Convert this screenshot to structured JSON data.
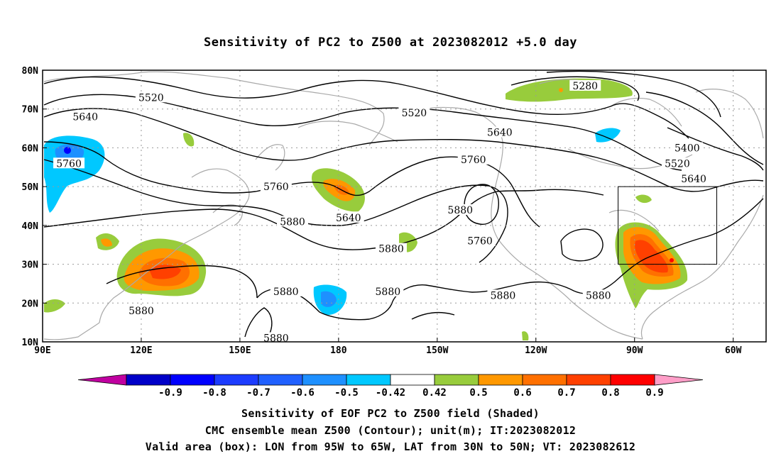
{
  "title": "Sensitivity of PC2 to Z500 at 2023082012 +5.0 day",
  "map": {
    "lat_labels": [
      "80N",
      "70N",
      "60N",
      "50N",
      "40N",
      "30N",
      "20N",
      "10N"
    ],
    "lon_labels": [
      "90E",
      "120E",
      "150E",
      "180",
      "150W",
      "120W",
      "90W",
      "60W"
    ],
    "contour_labels": [
      {
        "text": "5520",
        "lon": 123,
        "lat": 73
      },
      {
        "text": "5640",
        "lon": 103,
        "lat": 68
      },
      {
        "text": "5760",
        "lon": 98,
        "lat": 56
      },
      {
        "text": "5760",
        "lon": 161,
        "lat": 50
      },
      {
        "text": "5880",
        "lon": 166,
        "lat": 41
      },
      {
        "text": "5640",
        "lon": 183,
        "lat": 42
      },
      {
        "text": "5880",
        "lon": 217,
        "lat": 44
      },
      {
        "text": "5760",
        "lon": 223,
        "lat": 36
      },
      {
        "text": "5880",
        "lon": 196,
        "lat": 34
      },
      {
        "text": "5880",
        "lon": 195,
        "lat": 23
      },
      {
        "text": "5880",
        "lon": 164,
        "lat": 23
      },
      {
        "text": "5880",
        "lon": 120,
        "lat": 18
      },
      {
        "text": "5880",
        "lon": 161,
        "lat": 11
      },
      {
        "text": "5880",
        "lon": 230,
        "lat": 22
      },
      {
        "text": "5880",
        "lon": 259,
        "lat": 22
      },
      {
        "text": "5520",
        "lon": 203,
        "lat": 69
      },
      {
        "text": "5640",
        "lon": 229,
        "lat": 64
      },
      {
        "text": "5760",
        "lon": 221,
        "lat": 57
      },
      {
        "text": "5280",
        "lon": 255,
        "lat": 76
      },
      {
        "text": "5400",
        "lon": 286,
        "lat": 60
      },
      {
        "text": "5520",
        "lon": 283,
        "lat": 56
      },
      {
        "text": "5640",
        "lon": 288,
        "lat": 52
      }
    ],
    "valid_box": {
      "lon_min": 265,
      "lon_max": 295,
      "lat_min": 30,
      "lat_max": 50
    }
  },
  "colorbar": {
    "labels": [
      "-0.9",
      "-0.8",
      "-0.7",
      "-0.6",
      "-0.5",
      "-0.42",
      "0.42",
      "0.5",
      "0.6",
      "0.7",
      "0.8",
      "0.9"
    ],
    "colors": [
      "#c000a0",
      "#0000c8",
      "#0000ff",
      "#1c3cff",
      "#2060ff",
      "#1e90ff",
      "#00c8ff",
      "#ffffff",
      "#98cc3c",
      "#ff9800",
      "#ff7000",
      "#ff4000",
      "#ff0000",
      "#ff9ec8"
    ]
  },
  "captions": {
    "line1": "Sensitivity of EOF PC2 to Z500 field (Shaded)",
    "line2": "CMC ensemble mean Z500 (Contour); unit(m); IT:2023082012",
    "line3": "Valid area (box): LON from 95W to 65W, LAT from 30N to 50N; VT: 2023082612"
  }
}
